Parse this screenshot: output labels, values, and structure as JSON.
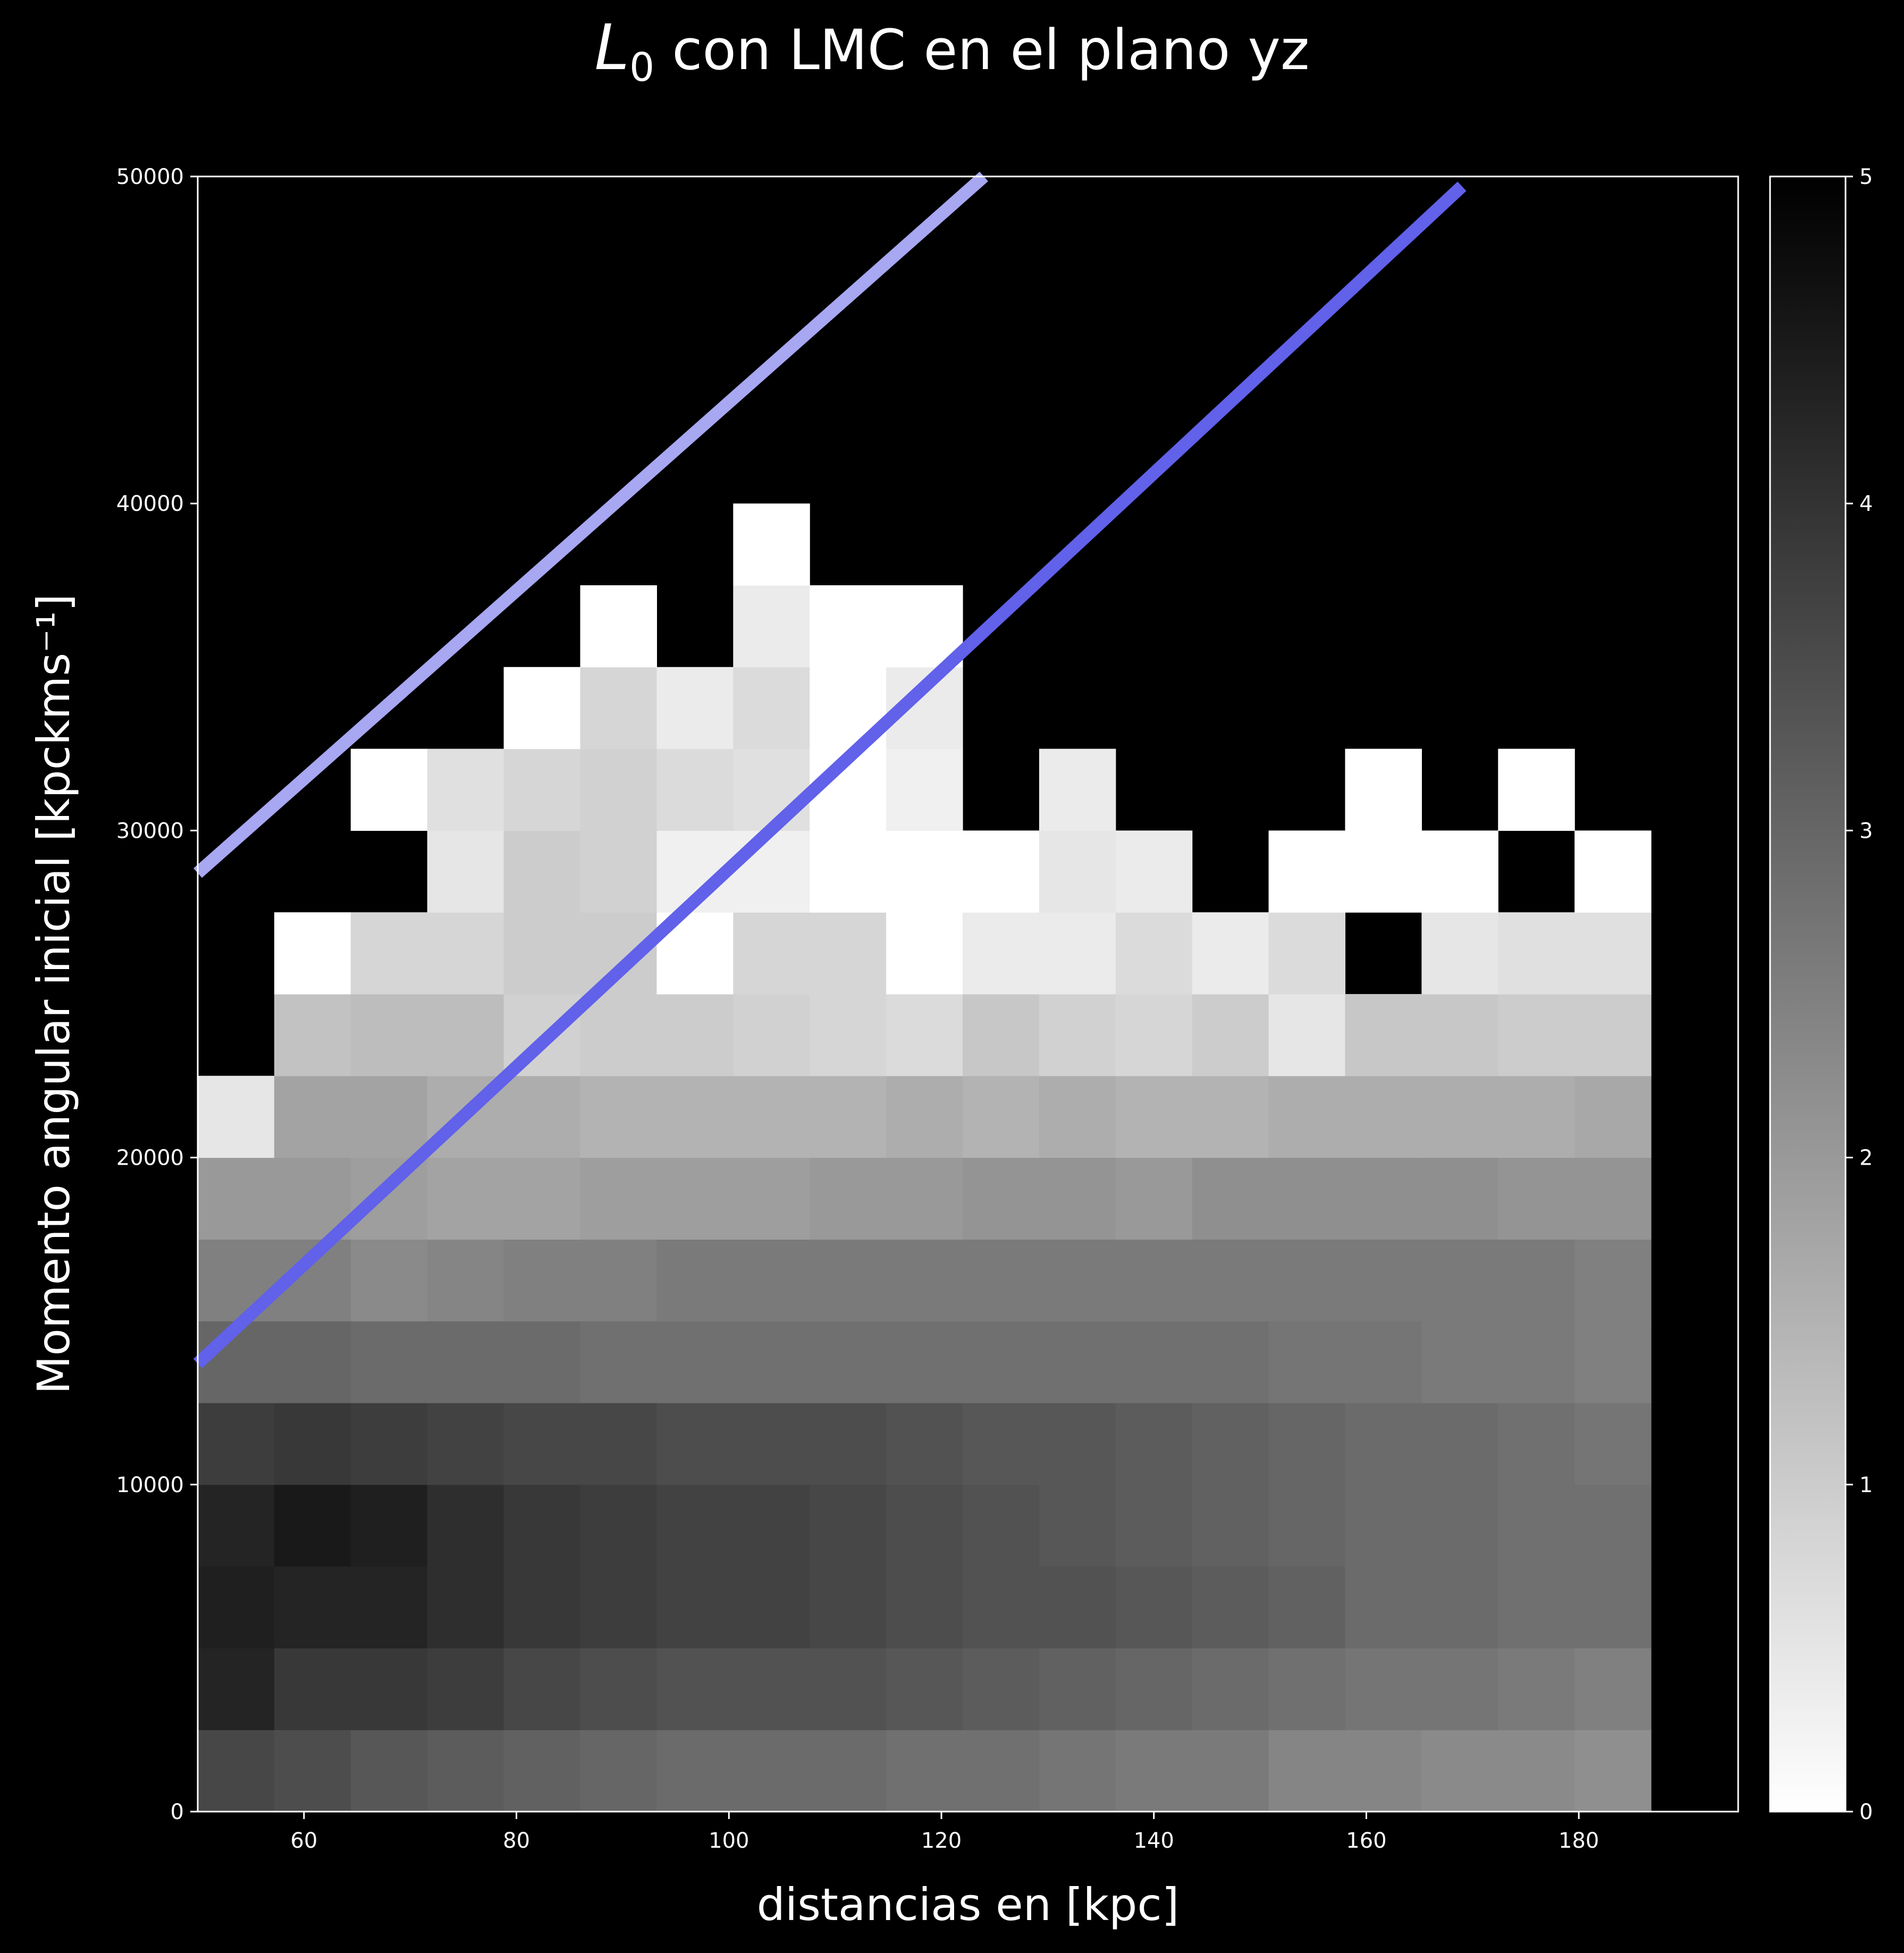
{
  "chart_data": {
    "type": "heatmap",
    "title": {
      "symbol": "L",
      "subscript": "0",
      "text": " con LMC en el plano yz"
    },
    "xlabel": "distancias en [kpc]",
    "ylabel": "Momento angular inicial [kpckms⁻¹]",
    "xlim": [
      50,
      195
    ],
    "ylim": [
      0,
      50000
    ],
    "x_ticks": [
      60,
      80,
      100,
      120,
      140,
      160,
      180
    ],
    "y_ticks": [
      0,
      10000,
      20000,
      30000,
      40000,
      50000
    ],
    "colorbar": {
      "range": [
        0,
        5
      ],
      "ticks": [
        0,
        1,
        2,
        3,
        4,
        5
      ],
      "colormap": "gray_r"
    },
    "x_edges": [
      50,
      57.2,
      64.4,
      71.6,
      78.8,
      86,
      93.2,
      100.4,
      107.6,
      114.8,
      122,
      129.2,
      136.4,
      143.6,
      150.8,
      158,
      165.2,
      172.4,
      179.6,
      186.8
    ],
    "y_edges": [
      0,
      2500,
      5000,
      7500,
      10000,
      12500,
      15000,
      17500,
      20000,
      22500,
      25000,
      27500,
      30000,
      32500,
      35000,
      37500,
      40000
    ],
    "values": [
      [
        3.6,
        3.5,
        3.3,
        3.2,
        3.1,
        3.0,
        2.9,
        2.9,
        2.9,
        2.8,
        2.8,
        2.7,
        2.6,
        2.6,
        2.4,
        2.4,
        2.3,
        2.3,
        2.2
      ],
      [
        4.3,
        3.9,
        3.9,
        3.8,
        3.6,
        3.5,
        3.4,
        3.4,
        3.4,
        3.3,
        3.2,
        3.1,
        3.0,
        2.9,
        2.8,
        2.7,
        2.7,
        2.6,
        2.5
      ],
      [
        4.4,
        4.3,
        4.3,
        4.1,
        3.9,
        3.8,
        3.7,
        3.7,
        3.6,
        3.5,
        3.4,
        3.4,
        3.3,
        3.2,
        3.1,
        2.9,
        2.9,
        2.8,
        2.8
      ],
      [
        4.3,
        4.5,
        4.4,
        4.1,
        3.9,
        3.8,
        3.7,
        3.7,
        3.6,
        3.5,
        3.4,
        3.3,
        3.2,
        3.1,
        3.0,
        2.9,
        2.9,
        2.8,
        2.8
      ],
      [
        3.8,
        3.9,
        3.8,
        3.7,
        3.6,
        3.6,
        3.5,
        3.5,
        3.5,
        3.4,
        3.3,
        3.3,
        3.2,
        3.1,
        3.0,
        2.9,
        2.9,
        2.8,
        2.7
      ],
      [
        3.0,
        3.0,
        2.9,
        2.9,
        2.9,
        2.8,
        2.8,
        2.8,
        2.8,
        2.8,
        2.8,
        2.8,
        2.8,
        2.8,
        2.7,
        2.7,
        2.6,
        2.6,
        2.5
      ],
      [
        2.5,
        2.5,
        2.3,
        2.4,
        2.5,
        2.5,
        2.6,
        2.6,
        2.6,
        2.6,
        2.6,
        2.6,
        2.6,
        2.6,
        2.6,
        2.6,
        2.6,
        2.6,
        2.5
      ],
      [
        2.0,
        2.0,
        1.9,
        1.8,
        1.8,
        1.9,
        1.9,
        1.9,
        2.0,
        2.0,
        2.1,
        2.1,
        2.0,
        2.2,
        2.2,
        2.2,
        2.2,
        2.1,
        2.1
      ],
      [
        0.5,
        1.8,
        1.8,
        1.6,
        1.6,
        1.5,
        1.5,
        1.5,
        1.5,
        1.6,
        1.5,
        1.6,
        1.5,
        1.5,
        1.6,
        1.6,
        1.6,
        1.6,
        1.7
      ],
      [
        null,
        1.2,
        1.3,
        1.3,
        0.9,
        1.0,
        1.0,
        0.9,
        0.8,
        0.7,
        1.1,
        0.9,
        0.8,
        1.0,
        0.5,
        1.1,
        1.1,
        1.0,
        1.0
      ],
      [
        null,
        0.0,
        0.8,
        0.8,
        1.0,
        1.0,
        0.0,
        0.8,
        0.8,
        0.0,
        0.4,
        0.4,
        0.7,
        0.4,
        0.7,
        null,
        0.5,
        0.6,
        0.6
      ],
      [
        null,
        null,
        null,
        0.5,
        1.0,
        0.9,
        0.3,
        0.3,
        0.0,
        0.0,
        0.0,
        0.5,
        0.4,
        null,
        0.0,
        0.0,
        0.0,
        null,
        0.0
      ],
      [
        null,
        null,
        0.0,
        0.6,
        0.8,
        0.9,
        0.7,
        0.6,
        0.0,
        0.3,
        null,
        0.4,
        null,
        null,
        null,
        0.0,
        null,
        0.0,
        null
      ],
      [
        null,
        null,
        null,
        null,
        0.0,
        0.8,
        0.4,
        0.7,
        0.0,
        0.4,
        null,
        null,
        null,
        null,
        null,
        null,
        null,
        null,
        null
      ],
      [
        null,
        null,
        null,
        null,
        null,
        0.0,
        null,
        0.4,
        0.0,
        0.0,
        null,
        null,
        null,
        null,
        null,
        null,
        null,
        null,
        null
      ],
      [
        null,
        null,
        null,
        null,
        null,
        null,
        null,
        0.0,
        null,
        null,
        null,
        null,
        null,
        null,
        null,
        null,
        null,
        null,
        null
      ]
    ],
    "lines": [
      {
        "color": "#a7a7f2",
        "x": [
          50,
          124
        ],
        "y": [
          28700,
          50000
        ]
      },
      {
        "color": "#6161ea",
        "x": [
          50,
          169
        ],
        "y": [
          13700,
          49700
        ]
      }
    ]
  }
}
